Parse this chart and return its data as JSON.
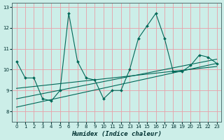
{
  "title": "",
  "xlabel": "Humidex (Indice chaleur)",
  "ylabel": "",
  "bg_color": "#cceee8",
  "grid_color": "#e8a0a8",
  "line_color": "#006858",
  "marker_color": "#006858",
  "xlim": [
    -0.5,
    23.5
  ],
  "ylim": [
    7.5,
    13.2
  ],
  "xticks": [
    0,
    1,
    2,
    3,
    4,
    5,
    6,
    7,
    8,
    9,
    10,
    11,
    12,
    13,
    14,
    15,
    16,
    17,
    18,
    19,
    20,
    21,
    22,
    23
  ],
  "yticks": [
    8,
    9,
    10,
    11,
    12,
    13
  ],
  "series1": {
    "x": [
      0,
      1,
      2,
      3,
      4,
      5,
      6,
      7,
      8,
      9,
      10,
      11,
      12,
      13,
      14,
      15,
      16,
      17,
      18,
      19,
      20,
      21,
      22,
      23
    ],
    "y": [
      10.4,
      9.6,
      9.6,
      8.6,
      8.5,
      9.0,
      12.7,
      10.4,
      9.6,
      9.5,
      8.6,
      9.0,
      9.0,
      10.0,
      11.5,
      12.1,
      12.7,
      11.5,
      9.9,
      9.9,
      10.2,
      10.7,
      10.6,
      10.3
    ]
  },
  "trend1": {
    "x": [
      0,
      23
    ],
    "y": [
      8.2,
      10.3
    ]
  },
  "trend2": {
    "x": [
      0,
      23
    ],
    "y": [
      8.6,
      10.5
    ]
  },
  "trend3": {
    "x": [
      0,
      23
    ],
    "y": [
      9.1,
      10.15
    ]
  }
}
